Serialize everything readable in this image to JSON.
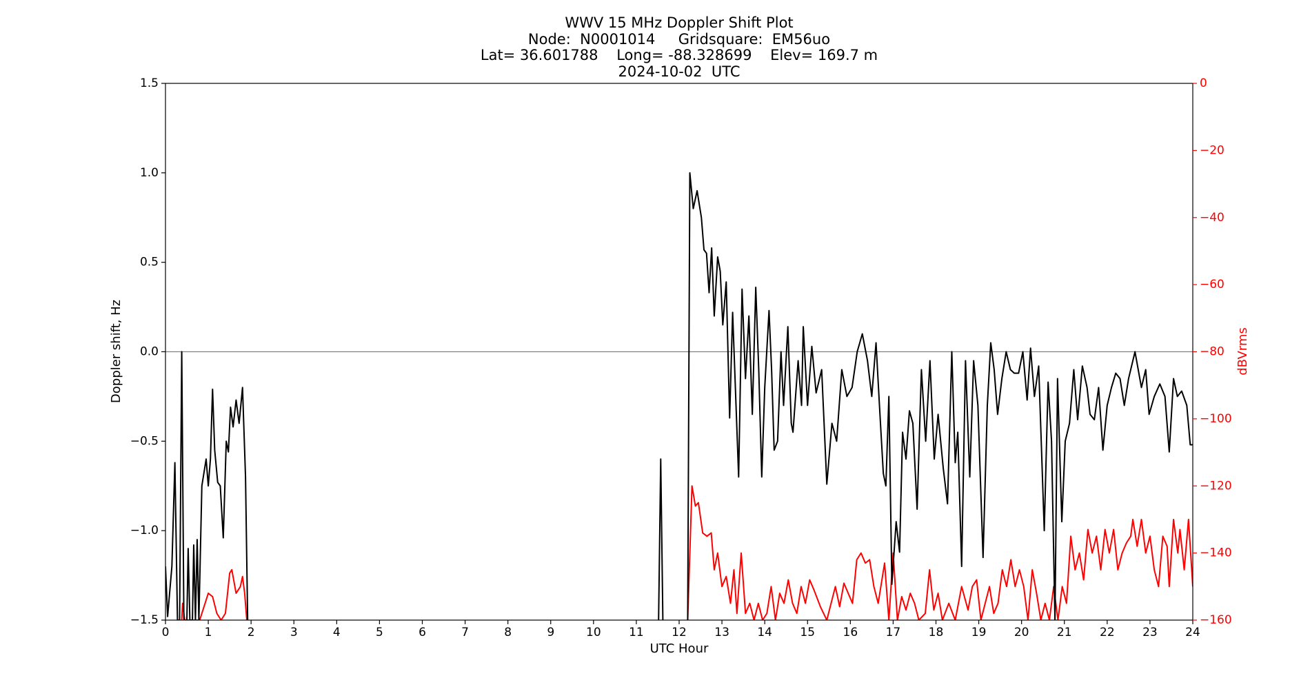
{
  "chart_data": {
    "type": "line",
    "title": [
      "WWV 15 MHz Doppler Shift Plot",
      "Node:  N0001014     Gridsquare:  EM56uo",
      "Lat= 36.601788    Long= -88.328699    Elev= 169.7 m",
      "2024-10-02  UTC"
    ],
    "xlabel": "UTC Hour",
    "ylabel": "Doppler shift, Hz",
    "y2label": "dBVrms",
    "xlim": [
      0,
      24
    ],
    "xticks": [
      0,
      1,
      2,
      3,
      4,
      5,
      6,
      7,
      8,
      9,
      10,
      11,
      12,
      13,
      14,
      15,
      16,
      17,
      18,
      19,
      20,
      21,
      22,
      23,
      24
    ],
    "ylim": [
      -1.5,
      1.5
    ],
    "yticks": [
      {
        "value": -1.5,
        "label": "−1.5"
      },
      {
        "value": -1.0,
        "label": "−1.0"
      },
      {
        "value": -0.5,
        "label": "−0.5"
      },
      {
        "value": 0,
        "label": "0.0"
      },
      0.5,
      {
        "value": 1.0,
        "label": "1.0"
      },
      1.5
    ],
    "y2lim": [
      -160,
      0
    ],
    "y2ticks": [
      {
        "value": -160,
        "label": "−160"
      },
      {
        "value": -140,
        "label": "−140"
      },
      {
        "value": -120,
        "label": "−120"
      },
      {
        "value": -100,
        "label": "−100"
      },
      {
        "value": -80,
        "label": "−80"
      },
      {
        "value": -60,
        "label": "−60"
      },
      {
        "value": -40,
        "label": "−40"
      },
      {
        "value": -20,
        "label": "−20"
      },
      0
    ],
    "grid": false,
    "reference_line": 0,
    "series": [
      {
        "name": "Doppler shift",
        "color": "#000000",
        "x": [
          0,
          0.05,
          0.15,
          0.22,
          0.28,
          0.33,
          0.38,
          0.43,
          0.5,
          0.53,
          0.57,
          0.63,
          0.66,
          0.7,
          0.74,
          0.78,
          0.85,
          0.95,
          1.0,
          1.05,
          1.1,
          1.15,
          1.22,
          1.28,
          1.35,
          1.42,
          1.47,
          1.52,
          1.58,
          1.65,
          1.72,
          1.8,
          1.87,
          1.92,
          6.0,
          11.52,
          11.57,
          11.62,
          12.0,
          12.2,
          12.25,
          12.33,
          12.42,
          12.52,
          12.58,
          12.64,
          12.7,
          12.76,
          12.82,
          12.9,
          12.96,
          13.02,
          13.1,
          13.18,
          13.25,
          13.39,
          13.47,
          13.55,
          13.63,
          13.71,
          13.79,
          13.86,
          13.93,
          14.0,
          14.1,
          14.16,
          14.22,
          14.3,
          14.38,
          14.44,
          14.54,
          14.62,
          14.66,
          14.78,
          14.86,
          14.9,
          15.0,
          15.1,
          15.2,
          15.33,
          15.45,
          15.57,
          15.68,
          15.8,
          15.92,
          16.04,
          16.16,
          16.28,
          16.4,
          16.5,
          16.6,
          16.68,
          16.77,
          16.83,
          16.9,
          16.97,
          17.07,
          17.15,
          17.22,
          17.3,
          17.38,
          17.46,
          17.56,
          17.66,
          17.76,
          17.86,
          17.96,
          18.05,
          18.17,
          18.27,
          18.37,
          18.45,
          18.51,
          18.6,
          18.69,
          18.79,
          18.88,
          18.98,
          19.1,
          19.2,
          19.28,
          19.36,
          19.44,
          19.54,
          19.64,
          19.74,
          19.83,
          19.93,
          20.03,
          20.13,
          20.21,
          20.3,
          20.4,
          20.53,
          20.62,
          20.7,
          20.78,
          20.84,
          20.94,
          21.02,
          21.12,
          21.22,
          21.31,
          21.42,
          21.53,
          21.6,
          21.7,
          21.8,
          21.9,
          22.0,
          22.1,
          22.2,
          22.3,
          22.4,
          22.5,
          22.65,
          22.8,
          22.9,
          22.98,
          23.1,
          23.23,
          23.35,
          23.45,
          23.55,
          23.64,
          23.74,
          23.86,
          23.94,
          24.0
        ],
        "values": [
          -1.2,
          -1.48,
          -1.2,
          -0.62,
          -1.5,
          -1.5,
          0,
          -1.5,
          -1.5,
          -1.1,
          -1.5,
          -1.5,
          -1.08,
          -1.5,
          -1.05,
          -1.5,
          -0.75,
          -0.6,
          -0.75,
          -0.6,
          -0.21,
          -0.55,
          -0.73,
          -0.75,
          -1.04,
          -0.5,
          -0.56,
          -0.31,
          -0.42,
          -0.27,
          -0.4,
          -0.2,
          -0.7,
          -1.5,
          null,
          -1.5,
          -0.6,
          -1.5,
          null,
          -1.5,
          1.0,
          0.8,
          0.9,
          0.75,
          0.57,
          0.55,
          0.33,
          0.58,
          0.2,
          0.53,
          0.45,
          0.15,
          0.39,
          -0.37,
          0.22,
          -0.7,
          0.35,
          -0.15,
          0.2,
          -0.35,
          0.36,
          -0.1,
          -0.7,
          -0.2,
          0.23,
          -0.1,
          -0.55,
          -0.5,
          0.0,
          -0.3,
          0.14,
          -0.4,
          -0.45,
          -0.05,
          -0.3,
          0.14,
          -0.3,
          0.03,
          -0.23,
          -0.1,
          -0.74,
          -0.4,
          -0.5,
          -0.1,
          -0.25,
          -0.2,
          0.0,
          0.1,
          -0.05,
          -0.25,
          0.05,
          -0.3,
          -0.68,
          -0.75,
          -0.25,
          -1.3,
          -0.95,
          -1.12,
          -0.45,
          -0.6,
          -0.33,
          -0.4,
          -0.88,
          -0.1,
          -0.5,
          -0.05,
          -0.6,
          -0.35,
          -0.65,
          -0.85,
          0.0,
          -0.62,
          -0.45,
          -1.2,
          -0.05,
          -0.7,
          -0.05,
          -0.3,
          -1.15,
          -0.3,
          0.05,
          -0.1,
          -0.35,
          -0.15,
          0.0,
          -0.1,
          -0.12,
          -0.12,
          0.0,
          -0.27,
          0.02,
          -0.25,
          -0.08,
          -1.0,
          -0.17,
          -0.5,
          -1.5,
          -0.15,
          -0.95,
          -0.5,
          -0.4,
          -0.1,
          -0.38,
          -0.08,
          -0.2,
          -0.35,
          -0.38,
          -0.2,
          -0.55,
          -0.3,
          -0.2,
          -0.12,
          -0.15,
          -0.3,
          -0.15,
          0.0,
          -0.2,
          -0.1,
          -0.35,
          -0.25,
          -0.18,
          -0.25,
          -0.56,
          -0.15,
          -0.25,
          -0.22,
          -0.3,
          -0.52,
          -0.52
        ]
      },
      {
        "name": "dBVrms",
        "color": "#ff0000",
        "axis": "y2",
        "x": [
          0.38,
          0.4,
          0.45,
          0.8,
          0.9,
          1.0,
          1.1,
          1.2,
          1.3,
          1.4,
          1.5,
          1.55,
          1.65,
          1.75,
          1.8,
          1.85,
          1.9,
          6.0,
          12.2,
          12.3,
          12.38,
          12.45,
          12.55,
          12.65,
          12.75,
          12.82,
          12.9,
          13.0,
          13.1,
          13.2,
          13.28,
          13.35,
          13.45,
          13.55,
          13.65,
          13.75,
          13.85,
          13.95,
          14.05,
          14.15,
          14.25,
          14.35,
          14.45,
          14.55,
          14.65,
          14.75,
          14.85,
          14.95,
          15.05,
          15.15,
          15.3,
          15.45,
          15.55,
          15.65,
          15.75,
          15.85,
          15.95,
          16.05,
          16.15,
          16.25,
          16.35,
          16.45,
          16.55,
          16.65,
          16.8,
          16.9,
          17.0,
          17.1,
          17.2,
          17.3,
          17.4,
          17.5,
          17.6,
          17.75,
          17.85,
          17.95,
          18.05,
          18.15,
          18.3,
          18.45,
          18.6,
          18.75,
          18.85,
          18.95,
          19.05,
          19.15,
          19.25,
          19.35,
          19.45,
          19.55,
          19.65,
          19.75,
          19.85,
          19.95,
          20.05,
          20.15,
          20.25,
          20.35,
          20.45,
          20.55,
          20.65,
          20.75,
          20.85,
          20.95,
          21.05,
          21.15,
          21.25,
          21.35,
          21.45,
          21.55,
          21.65,
          21.75,
          21.85,
          21.95,
          22.05,
          22.15,
          22.25,
          22.35,
          22.45,
          22.55,
          22.6,
          22.7,
          22.8,
          22.9,
          23.0,
          23.1,
          23.2,
          23.3,
          23.4,
          23.45,
          23.55,
          23.65,
          23.7,
          23.8,
          23.9,
          24.0
        ],
        "values": [
          -160,
          -155,
          -160,
          -160,
          -156,
          -152,
          -153,
          -158,
          -160,
          -158,
          -146,
          -145,
          -152,
          -150,
          -147,
          -152,
          -160,
          null,
          -160,
          -120,
          -126,
          -125,
          -134,
          -135,
          -134,
          -145,
          -140,
          -150,
          -147,
          -155,
          -145,
          -158,
          -140,
          -158,
          -155,
          -160,
          -155,
          -160,
          -158,
          -150,
          -160,
          -152,
          -155,
          -148,
          -155,
          -158,
          -150,
          -155,
          -148,
          -151,
          -156,
          -160,
          -155,
          -150,
          -156,
          -149,
          -152,
          -155,
          -142,
          -140,
          -143,
          -142,
          -150,
          -155,
          -143,
          -160,
          -140,
          -160,
          -153,
          -157,
          -152,
          -155,
          -160,
          -158,
          -145,
          -157,
          -152,
          -160,
          -155,
          -160,
          -150,
          -157,
          -150,
          -148,
          -160,
          -155,
          -150,
          -158,
          -155,
          -145,
          -150,
          -142,
          -150,
          -145,
          -150,
          -160,
          -145,
          -152,
          -160,
          -155,
          -160,
          -150,
          -160,
          -150,
          -155,
          -135,
          -145,
          -140,
          -148,
          -133,
          -140,
          -135,
          -145,
          -133,
          -140,
          -133,
          -145,
          -140,
          -137,
          -135,
          -130,
          -138,
          -130,
          -140,
          -135,
          -145,
          -150,
          -135,
          -138,
          -150,
          -130,
          -140,
          -133,
          -145,
          -130,
          -150
        ]
      }
    ]
  }
}
